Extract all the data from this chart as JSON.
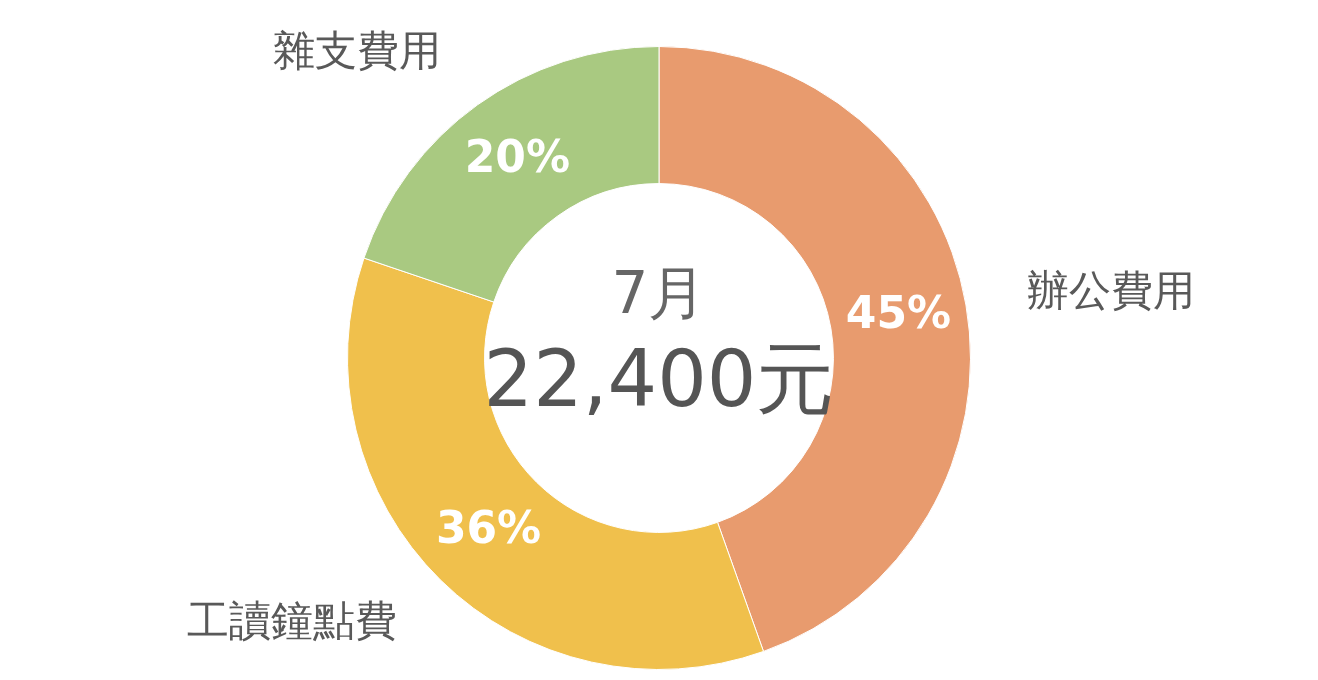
{
  "chart_data": {
    "type": "donut",
    "categories": [
      "辦公費用",
      "工讀鐘點費",
      "雜支費用"
    ],
    "values": [
      45,
      36,
      20
    ],
    "value_labels": [
      "45%",
      "36%",
      "20%"
    ],
    "colors": [
      "#e89b6e",
      "#f0c04c",
      "#a9c981"
    ],
    "annotations": [
      "7月",
      "22,400元"
    ]
  }
}
